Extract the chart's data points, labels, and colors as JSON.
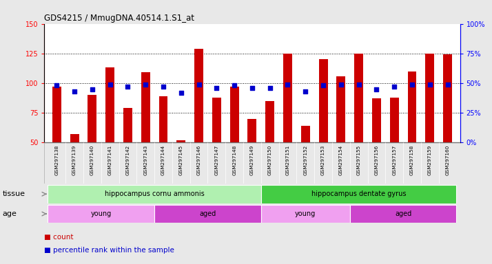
{
  "title": "GDS4215 / MmugDNA.40514.1.S1_at",
  "samples": [
    "GSM297138",
    "GSM297139",
    "GSM297140",
    "GSM297141",
    "GSM297142",
    "GSM297143",
    "GSM297144",
    "GSM297145",
    "GSM297146",
    "GSM297147",
    "GSM297148",
    "GSM297149",
    "GSM297150",
    "GSM297151",
    "GSM297152",
    "GSM297153",
    "GSM297154",
    "GSM297155",
    "GSM297156",
    "GSM297157",
    "GSM297158",
    "GSM297159",
    "GSM297160"
  ],
  "counts": [
    97,
    57,
    90,
    113,
    79,
    109,
    89,
    52,
    129,
    88,
    97,
    70,
    85,
    125,
    64,
    120,
    106,
    125,
    87,
    88,
    110,
    125,
    124
  ],
  "percentiles": [
    48,
    43,
    45,
    49,
    47,
    49,
    47,
    42,
    49,
    46,
    48,
    46,
    46,
    49,
    43,
    48,
    49,
    49,
    45,
    47,
    49,
    49,
    49
  ],
  "ylim_left": [
    50,
    150
  ],
  "ylim_right": [
    0,
    100
  ],
  "yticks_left": [
    50,
    75,
    100,
    125,
    150
  ],
  "yticks_right": [
    0,
    25,
    50,
    75,
    100
  ],
  "bar_color": "#cc0000",
  "dot_color": "#0000cc",
  "tissue_groups": [
    {
      "label": "hippocampus cornu ammonis",
      "start": 0,
      "end": 12,
      "color": "#b0f0b0"
    },
    {
      "label": "hippocampus dentate gyrus",
      "start": 12,
      "end": 23,
      "color": "#44cc44"
    }
  ],
  "age_groups": [
    {
      "label": "young",
      "start": 0,
      "end": 6,
      "color": "#f0a0f0"
    },
    {
      "label": "aged",
      "start": 6,
      "end": 12,
      "color": "#cc44cc"
    },
    {
      "label": "young",
      "start": 12,
      "end": 17,
      "color": "#f0a0f0"
    },
    {
      "label": "aged",
      "start": 17,
      "end": 23,
      "color": "#cc44cc"
    }
  ],
  "legend_count_label": "count",
  "legend_pct_label": "percentile rank within the sample",
  "tissue_label": "tissue",
  "age_label": "age",
  "background_color": "#e8e8e8",
  "plot_bg_color": "#ffffff",
  "xticklabel_bg": "#d8d8d8"
}
